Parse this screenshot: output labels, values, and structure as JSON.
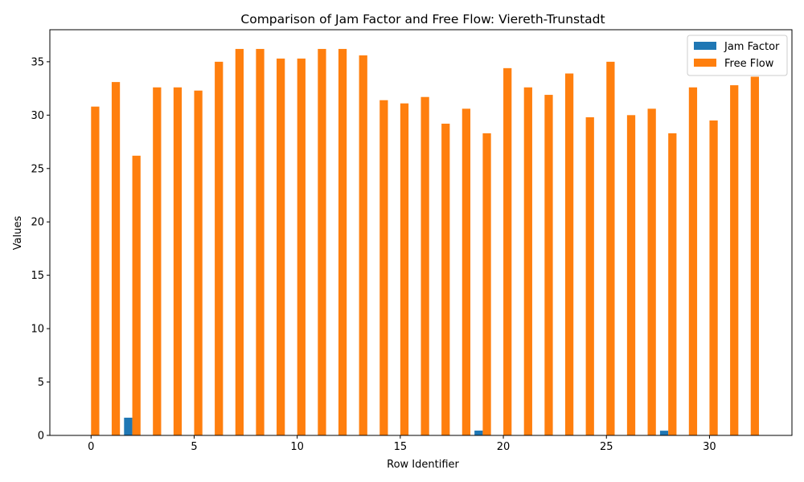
{
  "chart_data": {
    "type": "bar",
    "title": "Comparison of Jam Factor and Free Flow: Viereth-Trunstadt",
    "xlabel": "Row Identifier",
    "ylabel": "Values",
    "xlim": [
      -2,
      34
    ],
    "ylim": [
      0,
      38
    ],
    "xticks": [
      0,
      5,
      10,
      15,
      20,
      25,
      30
    ],
    "yticks": [
      0,
      5,
      10,
      15,
      20,
      25,
      30,
      35
    ],
    "legend_position": "top-right",
    "x": [
      0,
      1,
      2,
      3,
      4,
      5,
      6,
      7,
      8,
      9,
      10,
      11,
      12,
      13,
      14,
      15,
      16,
      17,
      18,
      19,
      20,
      21,
      22,
      23,
      24,
      25,
      26,
      27,
      28,
      29,
      30,
      31,
      32
    ],
    "series": [
      {
        "name": "Jam Factor",
        "color": "#1f77b4",
        "values": [
          0,
          0,
          1.66,
          0,
          0,
          0,
          0,
          0,
          0,
          0,
          0,
          0,
          0,
          0,
          0,
          0,
          0,
          0,
          0,
          0.45,
          0,
          0,
          0,
          0,
          0,
          0,
          0,
          0,
          0.44,
          0,
          0,
          0,
          0
        ]
      },
      {
        "name": "Free Flow",
        "color": "#ff7f0e",
        "values": [
          30.8,
          33.1,
          26.2,
          32.6,
          32.6,
          32.3,
          35.0,
          36.2,
          36.2,
          35.3,
          35.3,
          36.2,
          36.2,
          35.6,
          31.4,
          31.1,
          31.7,
          29.2,
          30.6,
          28.3,
          34.4,
          32.6,
          31.9,
          33.9,
          29.8,
          35.0,
          30.0,
          30.6,
          28.3,
          32.6,
          29.5,
          32.8,
          33.6
        ]
      }
    ]
  }
}
